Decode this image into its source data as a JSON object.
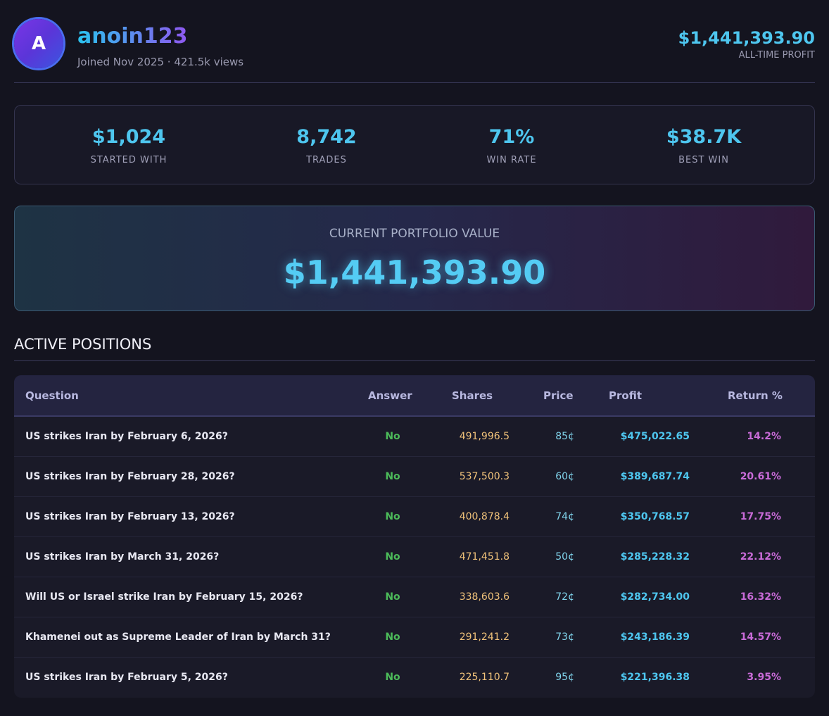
{
  "profile": {
    "avatar_letter": "A",
    "username": "anoin123",
    "joined": "Joined Nov 2025 · 421.5k views",
    "all_time_profit": "$1,441,393.90",
    "all_time_profit_label": "ALL-TIME PROFIT"
  },
  "stats": [
    {
      "value": "$1,024",
      "label": "STARTED WITH"
    },
    {
      "value": "8,742",
      "label": "TRADES"
    },
    {
      "value": "71%",
      "label": "WIN RATE"
    },
    {
      "value": "$38.7K",
      "label": "BEST WIN"
    }
  ],
  "portfolio": {
    "label": "CURRENT PORTFOLIO VALUE",
    "value": "$1,441,393.90"
  },
  "positions": {
    "title": "ACTIVE POSITIONS",
    "columns": [
      "Question",
      "Answer",
      "Shares",
      "Price",
      "Profit",
      "Return %"
    ],
    "rows": [
      {
        "question": "US strikes Iran by February 6, 2026?",
        "answer": "No",
        "shares": "491,996.5",
        "price": "85¢",
        "profit": "$475,022.65",
        "return": "14.2%"
      },
      {
        "question": "US strikes Iran by February 28, 2026?",
        "answer": "No",
        "shares": "537,500.3",
        "price": "60¢",
        "profit": "$389,687.74",
        "return": "20.61%"
      },
      {
        "question": "US strikes Iran by February 13, 2026?",
        "answer": "No",
        "shares": "400,878.4",
        "price": "74¢",
        "profit": "$350,768.57",
        "return": "17.75%"
      },
      {
        "question": "US strikes Iran by March 31, 2026?",
        "answer": "No",
        "shares": "471,451.8",
        "price": "50¢",
        "profit": "$285,228.32",
        "return": "22.12%"
      },
      {
        "question": "Will US or Israel strike Iran by February 15, 2026?",
        "answer": "No",
        "shares": "338,603.6",
        "price": "72¢",
        "profit": "$282,734.00",
        "return": "16.32%"
      },
      {
        "question": "Khamenei out as Supreme Leader of Iran by March 31?",
        "answer": "No",
        "shares": "291,241.2",
        "price": "73¢",
        "profit": "$243,186.39",
        "return": "14.57%"
      },
      {
        "question": "US strikes Iran by February 5, 2026?",
        "answer": "No",
        "shares": "225,110.7",
        "price": "95¢",
        "profit": "$221,396.38",
        "return": "3.95%"
      }
    ]
  }
}
